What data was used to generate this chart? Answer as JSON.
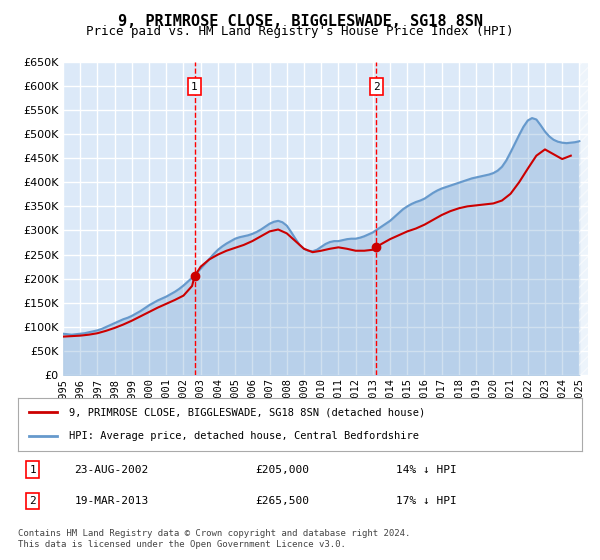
{
  "title": "9, PRIMROSE CLOSE, BIGGLESWADE, SG18 8SN",
  "subtitle": "Price paid vs. HM Land Registry's House Price Index (HPI)",
  "xlabel": "",
  "ylabel": "",
  "ylim": [
    0,
    650000
  ],
  "xlim_start": 1995.0,
  "xlim_end": 2025.5,
  "yticks": [
    0,
    50000,
    100000,
    150000,
    200000,
    250000,
    300000,
    350000,
    400000,
    450000,
    500000,
    550000,
    600000,
    650000
  ],
  "ytick_labels": [
    "£0",
    "£50K",
    "£100K",
    "£150K",
    "£200K",
    "£250K",
    "£300K",
    "£350K",
    "£400K",
    "£450K",
    "£500K",
    "£550K",
    "£600K",
    "£650K"
  ],
  "xtick_years": [
    1995,
    1996,
    1997,
    1998,
    1999,
    2000,
    2001,
    2002,
    2003,
    2004,
    2005,
    2006,
    2007,
    2008,
    2009,
    2010,
    2011,
    2012,
    2013,
    2014,
    2015,
    2016,
    2017,
    2018,
    2019,
    2020,
    2021,
    2022,
    2023,
    2024,
    2025
  ],
  "bg_color": "#dce9f8",
  "plot_bg_color": "#dce9f8",
  "grid_color": "#ffffff",
  "sale1_date": 2002.64,
  "sale1_price": 205000,
  "sale1_label": "1",
  "sale1_date_str": "23-AUG-2002",
  "sale1_pct": "14% ↓ HPI",
  "sale2_date": 2013.21,
  "sale2_price": 265500,
  "sale2_label": "2",
  "sale2_date_str": "19-MAR-2013",
  "sale2_pct": "17% ↓ HPI",
  "legend_line1": "9, PRIMROSE CLOSE, BIGGLESWADE, SG18 8SN (detached house)",
  "legend_line2": "HPI: Average price, detached house, Central Bedfordshire",
  "footer": "Contains HM Land Registry data © Crown copyright and database right 2024.\nThis data is licensed under the Open Government Licence v3.0.",
  "red_line_color": "#cc0000",
  "blue_line_color": "#6699cc",
  "blue_fill_color": "#6699cc",
  "hpi_years": [
    1995.0,
    1995.25,
    1995.5,
    1995.75,
    1996.0,
    1996.25,
    1996.5,
    1996.75,
    1997.0,
    1997.25,
    1997.5,
    1997.75,
    1998.0,
    1998.25,
    1998.5,
    1998.75,
    1999.0,
    1999.25,
    1999.5,
    1999.75,
    2000.0,
    2000.25,
    2000.5,
    2000.75,
    2001.0,
    2001.25,
    2001.5,
    2001.75,
    2002.0,
    2002.25,
    2002.5,
    2002.75,
    2003.0,
    2003.25,
    2003.5,
    2003.75,
    2004.0,
    2004.25,
    2004.5,
    2004.75,
    2005.0,
    2005.25,
    2005.5,
    2005.75,
    2006.0,
    2006.25,
    2006.5,
    2006.75,
    2007.0,
    2007.25,
    2007.5,
    2007.75,
    2008.0,
    2008.25,
    2008.5,
    2008.75,
    2009.0,
    2009.25,
    2009.5,
    2009.75,
    2010.0,
    2010.25,
    2010.5,
    2010.75,
    2011.0,
    2011.25,
    2011.5,
    2011.75,
    2012.0,
    2012.25,
    2012.5,
    2012.75,
    2013.0,
    2013.25,
    2013.5,
    2013.75,
    2014.0,
    2014.25,
    2014.5,
    2014.75,
    2015.0,
    2015.25,
    2015.5,
    2015.75,
    2016.0,
    2016.25,
    2016.5,
    2016.75,
    2017.0,
    2017.25,
    2017.5,
    2017.75,
    2018.0,
    2018.25,
    2018.5,
    2018.75,
    2019.0,
    2019.25,
    2019.5,
    2019.75,
    2020.0,
    2020.25,
    2020.5,
    2020.75,
    2021.0,
    2021.25,
    2021.5,
    2021.75,
    2022.0,
    2022.25,
    2022.5,
    2022.75,
    2023.0,
    2023.25,
    2023.5,
    2023.75,
    2024.0,
    2024.25,
    2024.5,
    2024.75,
    2025.0
  ],
  "hpi_values": [
    86000,
    85000,
    84000,
    85000,
    86000,
    87000,
    89000,
    91000,
    93000,
    96000,
    100000,
    104000,
    108000,
    112000,
    116000,
    119000,
    123000,
    128000,
    133000,
    139000,
    145000,
    150000,
    155000,
    159000,
    163000,
    168000,
    173000,
    179000,
    186000,
    194000,
    202000,
    211000,
    221000,
    231000,
    241000,
    251000,
    260000,
    267000,
    273000,
    278000,
    283000,
    286000,
    288000,
    290000,
    293000,
    297000,
    302000,
    308000,
    314000,
    318000,
    320000,
    317000,
    310000,
    297000,
    283000,
    270000,
    262000,
    258000,
    257000,
    260000,
    266000,
    272000,
    276000,
    278000,
    278000,
    280000,
    282000,
    283000,
    283000,
    285000,
    288000,
    292000,
    296000,
    302000,
    308000,
    314000,
    320000,
    328000,
    336000,
    344000,
    350000,
    355000,
    359000,
    362000,
    366000,
    372000,
    378000,
    383000,
    387000,
    390000,
    393000,
    396000,
    399000,
    402000,
    405000,
    408000,
    410000,
    412000,
    414000,
    416000,
    419000,
    424000,
    432000,
    445000,
    462000,
    480000,
    498000,
    515000,
    528000,
    533000,
    530000,
    518000,
    505000,
    495000,
    488000,
    484000,
    482000,
    481000,
    482000,
    483000,
    485000
  ],
  "price_years": [
    1995.0,
    1995.5,
    1996.0,
    1996.5,
    1997.0,
    1997.5,
    1998.0,
    1998.5,
    1999.0,
    1999.5,
    2000.0,
    2000.5,
    2001.0,
    2001.5,
    2002.0,
    2002.5,
    2002.64,
    2003.0,
    2003.5,
    2004.0,
    2004.5,
    2005.0,
    2005.5,
    2006.0,
    2006.5,
    2007.0,
    2007.5,
    2008.0,
    2008.5,
    2009.0,
    2009.5,
    2010.0,
    2010.5,
    2011.0,
    2011.5,
    2012.0,
    2012.5,
    2013.0,
    2013.21,
    2013.5,
    2014.0,
    2014.5,
    2015.0,
    2015.5,
    2016.0,
    2016.5,
    2017.0,
    2017.5,
    2018.0,
    2018.5,
    2019.0,
    2019.5,
    2020.0,
    2020.5,
    2021.0,
    2021.5,
    2022.0,
    2022.5,
    2023.0,
    2023.5,
    2024.0,
    2024.5
  ],
  "price_values": [
    80000,
    81000,
    82000,
    84000,
    87000,
    92000,
    98000,
    105000,
    113000,
    122000,
    131000,
    140000,
    148000,
    156000,
    165000,
    185000,
    205000,
    225000,
    240000,
    250000,
    258000,
    264000,
    270000,
    278000,
    288000,
    298000,
    302000,
    294000,
    278000,
    262000,
    255000,
    258000,
    262000,
    265000,
    262000,
    258000,
    258000,
    260000,
    265500,
    272000,
    282000,
    290000,
    298000,
    304000,
    312000,
    322000,
    332000,
    340000,
    346000,
    350000,
    352000,
    354000,
    356000,
    362000,
    376000,
    400000,
    428000,
    455000,
    468000,
    458000,
    448000,
    455000
  ]
}
